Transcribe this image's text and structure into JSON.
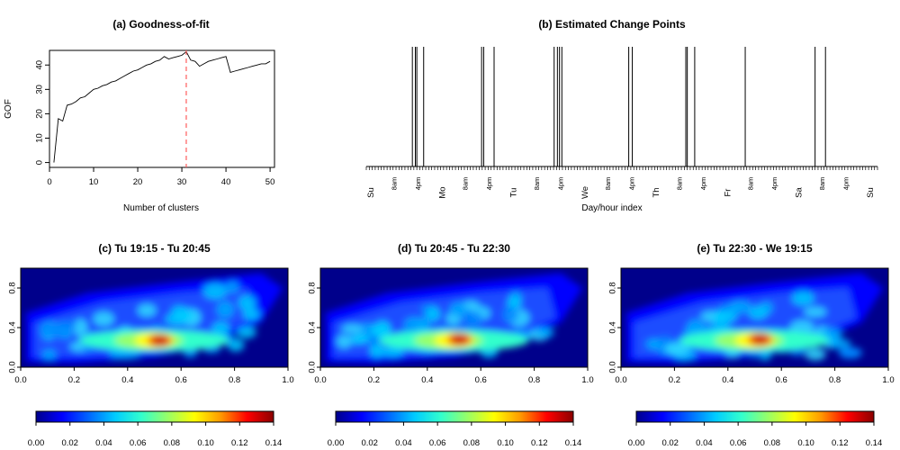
{
  "chart_data": [
    {
      "type": "line",
      "title": "(a) Goodness-of-fit",
      "xlabel": "Number of clusters",
      "ylabel": "GOF",
      "xlim": [
        0,
        51
      ],
      "ylim": [
        -2,
        46
      ],
      "xticks": [
        0,
        10,
        20,
        30,
        40,
        50
      ],
      "yticks": [
        0,
        10,
        20,
        30,
        40
      ],
      "x": [
        1,
        2,
        3,
        4,
        5,
        6,
        7,
        8,
        9,
        10,
        11,
        12,
        13,
        14,
        15,
        16,
        17,
        18,
        19,
        20,
        21,
        22,
        23,
        24,
        25,
        26,
        27,
        28,
        29,
        30,
        31,
        32,
        33,
        34,
        35,
        36,
        37,
        38,
        39,
        40,
        41,
        42,
        43,
        44,
        45,
        46,
        47,
        48,
        49,
        50
      ],
      "y": [
        0,
        18,
        17,
        23.5,
        24,
        25,
        26.5,
        27,
        28.5,
        30,
        30.5,
        31.5,
        32,
        33,
        33.5,
        34.5,
        35.5,
        36.5,
        37.5,
        38,
        39,
        40,
        40.5,
        41.5,
        42,
        43.5,
        42.5,
        43,
        43.5,
        44,
        45.5,
        42,
        41.5,
        39.5,
        40.5,
        41.5,
        42,
        42.5,
        43,
        43.5,
        37,
        37.5,
        38,
        38.5,
        39,
        39.5,
        40,
        40.5,
        40.5,
        41.5
      ],
      "vline": {
        "x": 31,
        "color": "#ff5c5c",
        "style": "dashed"
      }
    },
    {
      "type": "event",
      "title": "(b) Estimated Change Points",
      "xlabel": "Day/hour index",
      "days": [
        "Su",
        "Mo",
        "Tu",
        "We",
        "Th",
        "Fr",
        "Sa",
        "Su"
      ],
      "hour_labels": [
        "8am",
        "4pm"
      ],
      "change_points_hours": [
        15.5,
        16.5,
        17,
        19.3,
        38.8,
        39.5,
        43,
        63.2,
        64.3,
        65,
        65.8,
        88.3,
        89.5,
        107.5,
        108,
        110.5,
        127.5,
        151,
        154.5
      ]
    },
    {
      "type": "heatmap",
      "title": "(c) Tu 19:15 - Tu 20:45",
      "xlim": [
        0,
        1
      ],
      "ylim": [
        0,
        1
      ],
      "xticks": [
        "0.0",
        "0.2",
        "0.4",
        "0.6",
        "0.8",
        "1.0"
      ],
      "yticks": [
        "0.0",
        "0.4",
        "0.8"
      ],
      "colorbar": {
        "range": [
          0,
          0.14
        ],
        "ticks": [
          "0.00",
          "0.02",
          "0.04",
          "0.06",
          "0.08",
          "0.10",
          "0.12",
          "0.14"
        ]
      },
      "peak": {
        "x": 0.52,
        "y": 0.27,
        "value": 0.13
      }
    },
    {
      "type": "heatmap",
      "title": "(d) Tu 20:45 - Tu 22:30",
      "xlim": [
        0,
        1
      ],
      "ylim": [
        0,
        1
      ],
      "xticks": [
        "0.0",
        "0.2",
        "0.4",
        "0.6",
        "0.8",
        "1.0"
      ],
      "yticks": [
        "0.0",
        "0.4",
        "0.8"
      ],
      "colorbar": {
        "range": [
          0,
          0.14
        ],
        "ticks": [
          "0.00",
          "0.02",
          "0.04",
          "0.06",
          "0.08",
          "0.10",
          "0.12",
          "0.14"
        ]
      },
      "peak": {
        "x": 0.52,
        "y": 0.28,
        "value": 0.135
      }
    },
    {
      "type": "heatmap",
      "title": "(e) Tu 22:30 - We 19:15",
      "xlim": [
        0,
        1
      ],
      "ylim": [
        0,
        1
      ],
      "xticks": [
        "0.0",
        "0.2",
        "0.4",
        "0.6",
        "0.8",
        "1.0"
      ],
      "yticks": [
        "0.0",
        "0.4",
        "0.8"
      ],
      "colorbar": {
        "range": [
          0,
          0.14
        ],
        "ticks": [
          "0.00",
          "0.02",
          "0.04",
          "0.06",
          "0.08",
          "0.10",
          "0.12",
          "0.14"
        ]
      },
      "peak": {
        "x": 0.52,
        "y": 0.28,
        "value": 0.125
      }
    }
  ]
}
